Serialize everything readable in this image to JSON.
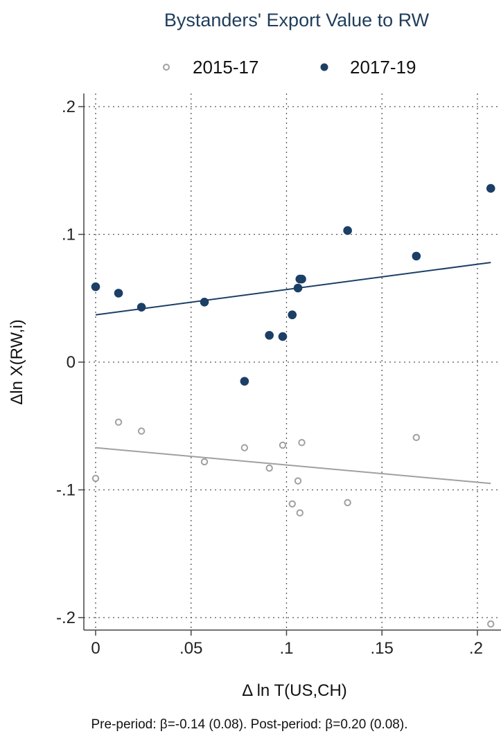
{
  "chart_data": {
    "type": "scatter",
    "title": "Bystanders' Export Value to RW",
    "xlabel": "Δ ln T(US,CH)",
    "ylabel": "Δln X(RW,i)",
    "note": "Pre-period: β=-0.14 (0.08). Post-period: β=0.20 (0.08).",
    "xlim": [
      0,
      0.21
    ],
    "ylim": [
      -0.2,
      0.2
    ],
    "xticks": [
      0,
      0.05,
      0.1,
      0.15,
      0.2
    ],
    "xtick_labels": [
      "0",
      ".05",
      ".1",
      ".15",
      ".2"
    ],
    "yticks": [
      -0.2,
      -0.1,
      0,
      0.1,
      0.2
    ],
    "ytick_labels": [
      "-.2",
      "-.1",
      "0",
      ".1",
      ".2"
    ],
    "grid": true,
    "legend_position": "top",
    "series": [
      {
        "name": "2015-17",
        "color": "#a0a0a0",
        "marker": "hollow-circle",
        "points": [
          {
            "x": 0.0,
            "y": -0.091
          },
          {
            "x": 0.012,
            "y": -0.047
          },
          {
            "x": 0.024,
            "y": -0.054
          },
          {
            "x": 0.057,
            "y": -0.078
          },
          {
            "x": 0.078,
            "y": -0.067
          },
          {
            "x": 0.091,
            "y": -0.083
          },
          {
            "x": 0.098,
            "y": -0.065
          },
          {
            "x": 0.103,
            "y": -0.111
          },
          {
            "x": 0.106,
            "y": -0.093
          },
          {
            "x": 0.107,
            "y": -0.118
          },
          {
            "x": 0.108,
            "y": -0.063
          },
          {
            "x": 0.132,
            "y": -0.11
          },
          {
            "x": 0.168,
            "y": -0.059
          },
          {
            "x": 0.207,
            "y": -0.205
          }
        ],
        "fit_line": [
          {
            "x": 0.0,
            "y": -0.067
          },
          {
            "x": 0.207,
            "y": -0.095
          }
        ]
      },
      {
        "name": "2017-19",
        "color": "#1c3f66",
        "marker": "filled-circle",
        "points": [
          {
            "x": 0.0,
            "y": 0.059
          },
          {
            "x": 0.012,
            "y": 0.054
          },
          {
            "x": 0.024,
            "y": 0.043
          },
          {
            "x": 0.057,
            "y": 0.047
          },
          {
            "x": 0.078,
            "y": -0.015
          },
          {
            "x": 0.091,
            "y": 0.021
          },
          {
            "x": 0.098,
            "y": 0.02
          },
          {
            "x": 0.103,
            "y": 0.037
          },
          {
            "x": 0.106,
            "y": 0.058
          },
          {
            "x": 0.107,
            "y": 0.065
          },
          {
            "x": 0.108,
            "y": 0.065
          },
          {
            "x": 0.132,
            "y": 0.103
          },
          {
            "x": 0.168,
            "y": 0.083
          },
          {
            "x": 0.207,
            "y": 0.136
          }
        ],
        "fit_line": [
          {
            "x": 0.0,
            "y": 0.037
          },
          {
            "x": 0.207,
            "y": 0.078
          }
        ]
      }
    ]
  }
}
